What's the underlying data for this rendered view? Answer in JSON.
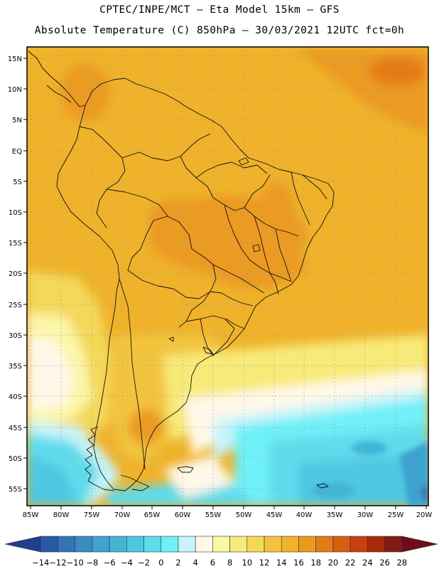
{
  "header": {
    "title_line1": "CPTEC/INPE/MCT —  Eta Model 15km — GFS",
    "title_line2": "Absolute Temperature (C) 850hPa — 30/03/2021 12UTC fct=0h"
  },
  "map": {
    "lat_labels": [
      "15N",
      "10N",
      "5N",
      "EQ",
      "5S",
      "10S",
      "15S",
      "20S",
      "25S",
      "30S",
      "35S",
      "40S",
      "45S",
      "50S",
      "55S"
    ],
    "lon_labels": [
      "85W",
      "80W",
      "75W",
      "70W",
      "65W",
      "60W",
      "55W",
      "50W",
      "45W",
      "40W",
      "35W",
      "30W",
      "25W",
      "20W"
    ],
    "grid": "dotted"
  },
  "colorbar": {
    "labels": [
      "-14",
      "-12",
      "-10",
      "-8",
      "-6",
      "-4",
      "-2",
      "0",
      "2",
      "4",
      "6",
      "8",
      "10",
      "12",
      "14",
      "16",
      "18",
      "20",
      "22",
      "24",
      "26",
      "28"
    ],
    "colors": [
      "#1d3f8e",
      "#2a5aa6",
      "#3473b5",
      "#3a8cc4",
      "#3ea3cf",
      "#43b6d8",
      "#4ec8e2",
      "#5fdcec",
      "#6ff0f8",
      "#c6f4fa",
      "#fff8e8",
      "#fbf6a8",
      "#f8ea78",
      "#f4d85a",
      "#f2c43e",
      "#efb22a",
      "#eb9a20",
      "#e57a18",
      "#d95c12",
      "#c7400e",
      "#a8280c",
      "#821a12",
      "#6e0c1c"
    ]
  }
}
